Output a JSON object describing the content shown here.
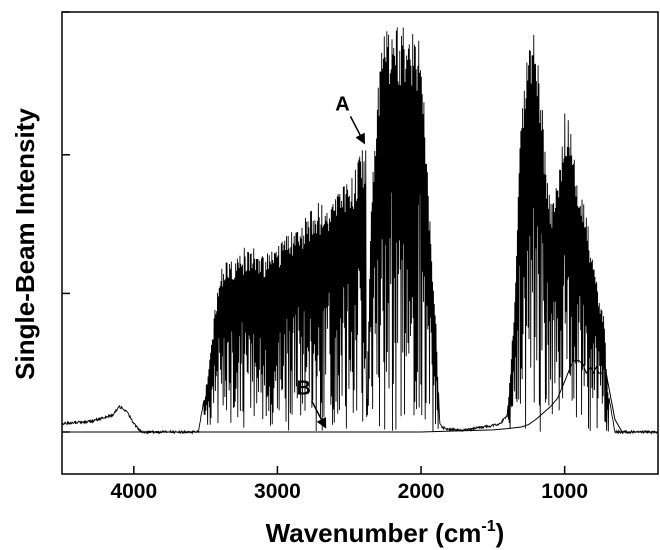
{
  "chart_data": {
    "type": "line",
    "title": "",
    "xlabel": "Wavenumber (cm",
    "xlabel_superscript": "-1",
    "xlabel_suffix": ")",
    "ylabel": "Single-Beam Intensity",
    "xlim": [
      4500,
      350
    ],
    "x_reversed": true,
    "ylim": [
      -0.1,
      1.0
    ],
    "y_tick_labels_shown": false,
    "y_ticks": [
      0,
      0.33,
      0.66,
      1.0
    ],
    "x_ticks": [
      4000,
      3000,
      2000,
      1000
    ],
    "x_tick_labels": [
      "4000",
      "3000",
      "2000",
      "1000"
    ],
    "grid": false,
    "annotations": [
      {
        "label": "A",
        "target_x": 2380,
        "target_y": 0.68
      },
      {
        "label": "B",
        "target_x": 2650,
        "target_y": 0.003
      }
    ],
    "series": [
      {
        "envelope": true,
        "x": [
          4500,
          4300,
          4150,
          4100,
          4050,
          4000,
          3950,
          3700,
          3550,
          3500,
          3450,
          3400,
          3300,
          3200,
          3100,
          3000,
          2900,
          2800,
          2700,
          2600,
          2500,
          2450,
          2400,
          2385,
          2380,
          2350,
          2300,
          2250,
          2200,
          2150,
          2100,
          2050,
          2000,
          1950,
          1900,
          1870,
          1850,
          1800,
          1700,
          1600,
          1500,
          1450,
          1400,
          1350,
          1300,
          1250,
          1200,
          1150,
          1100,
          1050,
          1000,
          970,
          950,
          900,
          850,
          800,
          760,
          730,
          700,
          650,
          600,
          500,
          350
        ],
        "y_upper": [
          0.02,
          0.025,
          0.04,
          0.06,
          0.05,
          0.02,
          0.0,
          0.0,
          0.0,
          0.1,
          0.25,
          0.4,
          0.42,
          0.45,
          0.42,
          0.45,
          0.48,
          0.52,
          0.55,
          0.57,
          0.6,
          0.64,
          0.68,
          0.69,
          0.02,
          0.55,
          0.85,
          0.96,
          0.98,
          0.96,
          0.97,
          0.96,
          0.95,
          0.6,
          0.3,
          0.02,
          0.01,
          0.005,
          0.005,
          0.01,
          0.015,
          0.02,
          0.04,
          0.3,
          0.8,
          0.95,
          0.95,
          0.75,
          0.55,
          0.62,
          0.76,
          0.74,
          0.73,
          0.6,
          0.52,
          0.42,
          0.32,
          0.3,
          0.1,
          0.0,
          0.0,
          0.0,
          0.0
        ],
        "y_lower": [
          0.02,
          0.02,
          0.03,
          0.04,
          0.03,
          0.01,
          0.0,
          0.0,
          0.0,
          0.0,
          0.0,
          0.0,
          0.0,
          0.0,
          0.0,
          0.0,
          0.0,
          0.0,
          0.0,
          0.0,
          0.0,
          0.0,
          0.0,
          0.0,
          0.0,
          0.0,
          0.0,
          0.0,
          0.0,
          0.0,
          0.0,
          0.0,
          0.0,
          0.0,
          0.0,
          0.0,
          0.0,
          0.0,
          0.0,
          0.0,
          0.0,
          0.0,
          0.0,
          0.0,
          0.0,
          0.0,
          0.0,
          0.0,
          0.0,
          0.0,
          0.0,
          0.0,
          0.0,
          0.0,
          0.0,
          0.0,
          0.0,
          0.0,
          0.0,
          0.0,
          0.0,
          0.0,
          0.0
        ]
      },
      {
        "envelope": false,
        "x": [
          4500,
          3500,
          2000,
          1800,
          1500,
          1400,
          1300,
          1250,
          1200,
          1150,
          1100,
          1050,
          1000,
          960,
          940,
          900,
          870,
          850,
          820,
          800,
          780,
          760,
          740,
          720,
          700,
          650,
          600,
          350
        ],
        "y": [
          0.0,
          0.0,
          0.0,
          0.002,
          0.005,
          0.008,
          0.012,
          0.018,
          0.03,
          0.045,
          0.06,
          0.08,
          0.12,
          0.155,
          0.17,
          0.17,
          0.16,
          0.14,
          0.155,
          0.14,
          0.155,
          0.14,
          0.14,
          0.16,
          0.12,
          0.03,
          0.0,
          0.0
        ]
      }
    ]
  }
}
